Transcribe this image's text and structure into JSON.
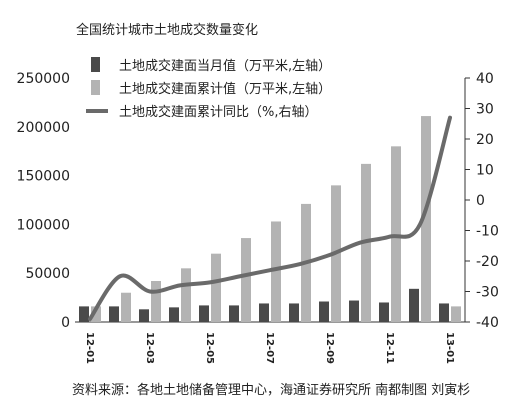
{
  "chart_data": {
    "type": "bar",
    "title": "全国统计城市土地成交数量变化",
    "categories": [
      "12-01",
      "12-02",
      "12-03",
      "12-04",
      "12-05",
      "12-06",
      "12-07",
      "12-08",
      "12-09",
      "12-10",
      "12-11",
      "12-12",
      "13-01"
    ],
    "x_tick_labels": [
      "12-01",
      "12-03",
      "12-05",
      "12-07",
      "12-09",
      "12-11",
      "13-01"
    ],
    "series": [
      {
        "name": "土地成交建面当月值（万平米,左轴）",
        "type": "bar",
        "axis": "left",
        "color": "#4a4a4a",
        "values": [
          16000,
          16000,
          13000,
          15000,
          17000,
          17000,
          19000,
          19000,
          21000,
          22000,
          20000,
          34000,
          19000
        ]
      },
      {
        "name": "土地成交建面累计值（万平米,左轴）",
        "type": "bar",
        "axis": "left",
        "color": "#b3b3b3",
        "values": [
          16000,
          30000,
          42000,
          55000,
          70000,
          86000,
          103000,
          121000,
          140000,
          162000,
          180000,
          211000,
          16000
        ]
      },
      {
        "name": "土地成交建面累计同比（%,右轴）",
        "type": "line",
        "axis": "right",
        "color": "#6a6a6a",
        "values": [
          -39,
          -25,
          -30,
          -28,
          -27,
          -25,
          -23,
          -21,
          -18,
          -14,
          -12,
          -8,
          27
        ]
      }
    ],
    "y_left": {
      "min": 0,
      "max": 250000,
      "ticks": [
        0,
        50000,
        100000,
        150000,
        200000,
        250000
      ]
    },
    "y_right": {
      "min": -40,
      "max": 40,
      "ticks": [
        -40,
        -30,
        -20,
        -10,
        0,
        10,
        20,
        30,
        40
      ]
    },
    "legend_position": "top-left"
  },
  "source": "资料来源：各地土地储备管理中心，海通证券研究所    南都制图   刘寅杉"
}
